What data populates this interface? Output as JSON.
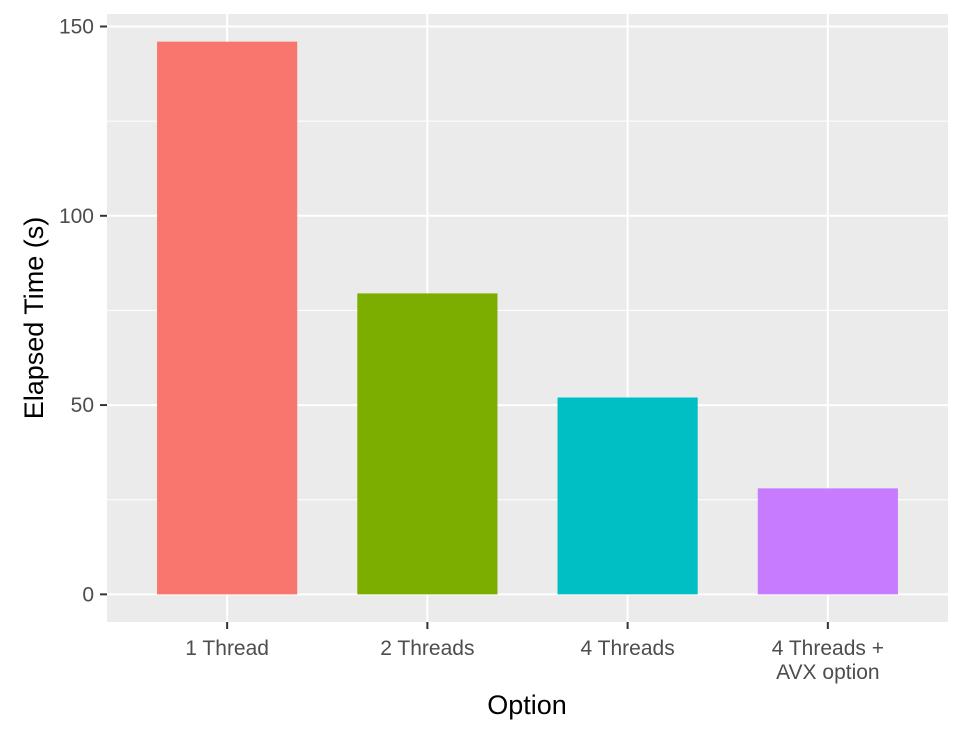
{
  "chart_data": {
    "type": "bar",
    "categories": [
      "1 Thread",
      "2 Threads",
      "4 Threads",
      "4 Threads +\nAVX option"
    ],
    "values": [
      146,
      79.5,
      52,
      28
    ],
    "colors": [
      "#F8766D",
      "#7CAE00",
      "#00BFC4",
      "#C77CFF"
    ],
    "xlabel": "Option",
    "ylabel": "Elapsed Time (s)",
    "ylim": [
      -7.3,
      153.3
    ],
    "yticks": [
      0,
      50,
      100,
      150
    ],
    "yticks_minor": [
      25,
      75,
      125
    ],
    "grid": true,
    "legend": "none",
    "theme": {
      "panel_background": "#EBEBEB",
      "grid_color": "#FFFFFF"
    }
  }
}
